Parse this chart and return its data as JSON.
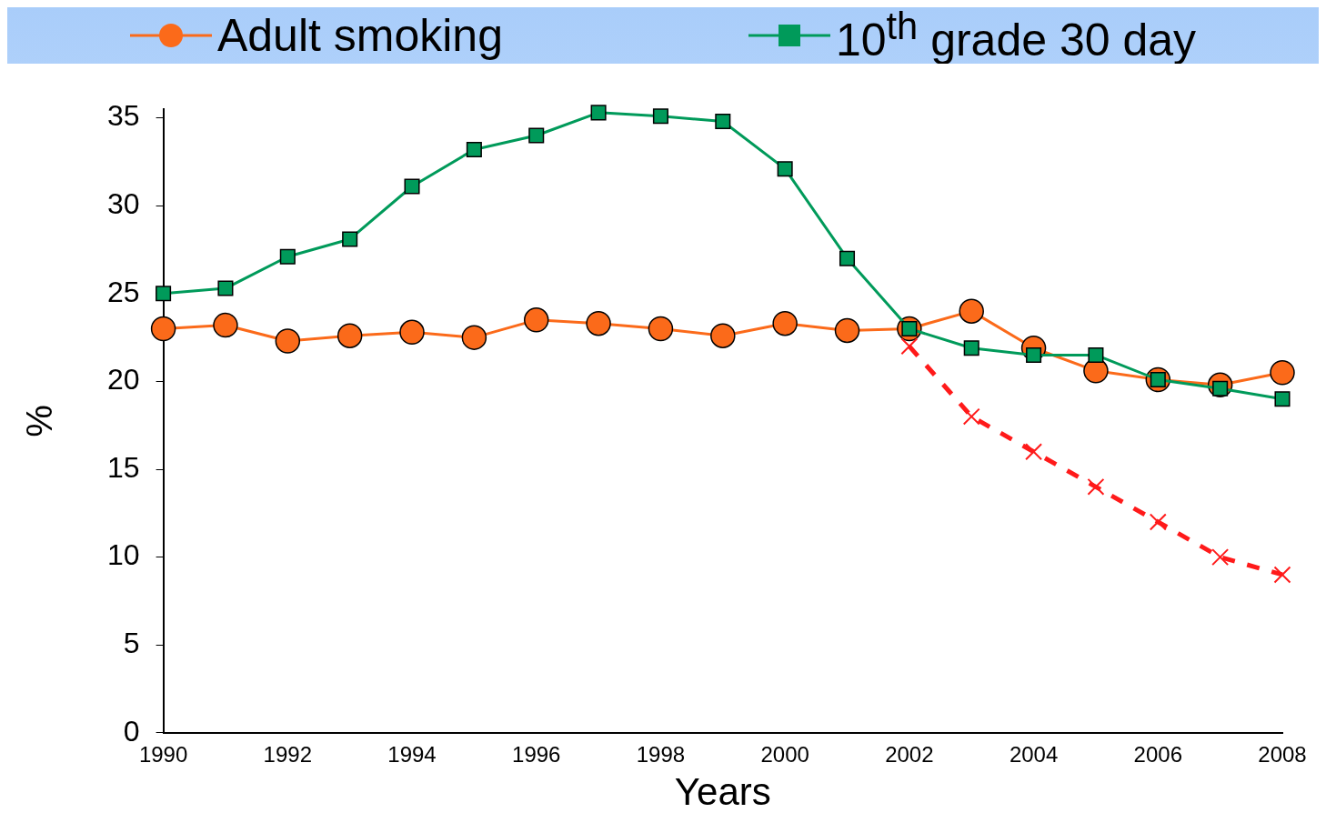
{
  "chart_data": {
    "type": "line",
    "xlabel": "Years",
    "ylabel": "%",
    "legend": "top",
    "x": [
      1990,
      1991,
      1992,
      1993,
      1994,
      1995,
      1996,
      1997,
      1998,
      1999,
      2000,
      2001,
      2002,
      2003,
      2004,
      2005,
      2006,
      2007,
      2008
    ],
    "xlim": [
      1990,
      2008
    ],
    "xticks": [
      1990,
      1992,
      1994,
      1996,
      1998,
      2000,
      2002,
      2004,
      2006,
      2008
    ],
    "ylim": [
      0,
      35.5
    ],
    "yticks": [
      0,
      5,
      10,
      15,
      20,
      25,
      30,
      35
    ],
    "grid": false,
    "series": [
      {
        "name": "Adult smoking",
        "color": "#fb6a1a",
        "marker": "circle",
        "line_style": "solid",
        "values": [
          23.0,
          23.2,
          22.3,
          22.6,
          22.8,
          22.5,
          23.5,
          23.3,
          23.0,
          22.6,
          23.3,
          22.9,
          23.0,
          24.0,
          21.9,
          20.6,
          20.1,
          19.8,
          20.5
        ]
      },
      {
        "name": "10$^{th}$ grade 30 day",
        "color": "#009a5a",
        "marker": "square",
        "line_style": "solid",
        "values": [
          25.0,
          25.3,
          27.1,
          28.1,
          31.1,
          33.2,
          34.0,
          35.3,
          35.1,
          34.8,
          32.1,
          27.0,
          23.0,
          21.9,
          21.5,
          21.5,
          20.1,
          19.6,
          19.0
        ]
      },
      {
        "color": "#ff1a1a",
        "marker": "cross",
        "line_style": "dashed",
        "x": [
          2002,
          2003,
          2004,
          2005,
          2006,
          2007,
          2008
        ],
        "values": [
          22.0,
          18.0,
          16.0,
          14.0,
          12.0,
          10.0,
          9.0
        ]
      }
    ]
  }
}
